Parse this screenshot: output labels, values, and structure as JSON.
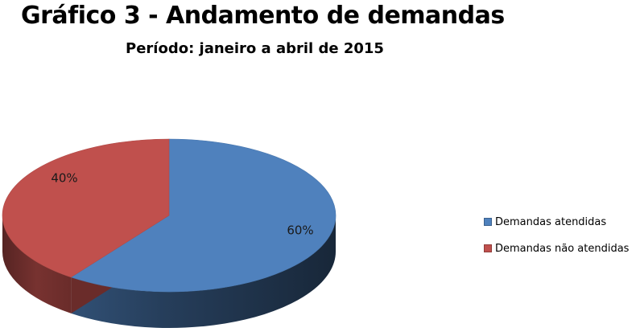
{
  "chart_data": {
    "type": "pie",
    "title": "Gráfico 3 - Andamento de demandas",
    "subtitle": "Período: janeiro a abril de 2015",
    "slices": [
      {
        "label": "Demandas atendidas",
        "value": 60,
        "display": "60%",
        "color": "#4f81bd"
      },
      {
        "label": "Demandas não atendidas",
        "value": 40,
        "display": "40%",
        "color": "#c0504d"
      }
    ],
    "legend_position": "right",
    "style": "3d"
  }
}
